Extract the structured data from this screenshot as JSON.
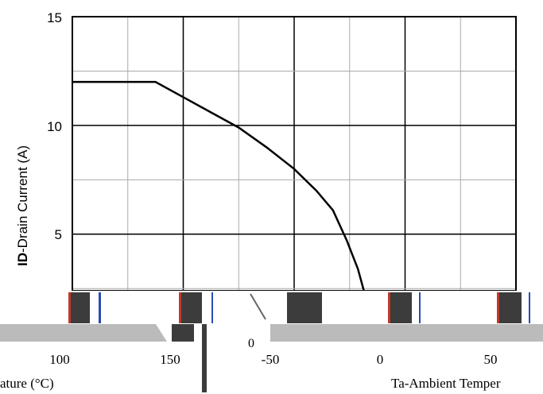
{
  "chart_data": {
    "type": "line",
    "ylabel_bold": "ID",
    "ylabel_rest": "-Drain Current (A)",
    "ylim": [
      0,
      15
    ],
    "y_ticks": [
      "15",
      "10",
      "5"
    ],
    "grid": true,
    "legend": "none",
    "series": [
      {
        "values_note": "",
        "points": [
          [
            0.0,
            12.0
          ],
          [
            1.5,
            12.0
          ],
          [
            2.0,
            11.3
          ],
          [
            2.5,
            10.6
          ],
          [
            3.0,
            9.9
          ],
          [
            3.5,
            9.0
          ],
          [
            4.0,
            8.0
          ],
          [
            4.4,
            7.0
          ],
          [
            4.7,
            6.1
          ],
          [
            4.95,
            4.7
          ],
          [
            5.15,
            3.4
          ],
          [
            5.3,
            2.0
          ]
        ]
      }
    ],
    "x_segments": 8,
    "line_color": "#000000",
    "grid_color": "#aaaaaa"
  },
  "lower_fragments": {
    "left_ticks": [
      "100",
      "150"
    ],
    "left_axis_label": "ature (°C)",
    "right_ticks": [
      "-50",
      "0",
      "50"
    ],
    "right_zero": "0",
    "right_axis_label": "Ta-Ambient Temper"
  },
  "colors": {
    "dark_block": "#3c3c3c",
    "gray_band": "#bbbbbb",
    "red_edge": "#c0392b",
    "blue_edge": "#2a4bb0"
  }
}
